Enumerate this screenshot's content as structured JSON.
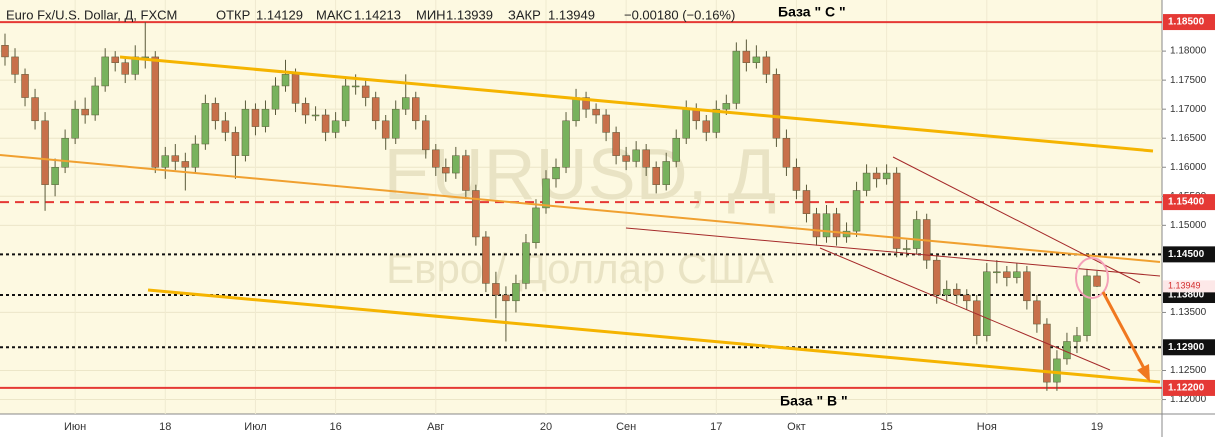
{
  "chart_data": {
    "type": "candlestick",
    "header": {
      "symbol": "Euro Fx/U.S. Dollar, Д, FXCM",
      "open_label": "ОТКР",
      "open": "1.14129",
      "high_label": "МАКС",
      "high": "1.14213",
      "low_label": "МИН",
      "low": "1.13939",
      "close_label": "ЗАКР",
      "close": "1.13949",
      "change": "−0.00180 (−0.16%)"
    },
    "watermark": {
      "ticker": "EURUSD, Д",
      "name": "Евро / Доллар США"
    },
    "annotations": [
      "База \" С \"",
      "База \" В \""
    ],
    "up_color": "#78b25d",
    "down_color": "#c8704a",
    "ylim": [
      1.1182,
      1.1888
    ],
    "yticks": [
      {
        "value": 1.12,
        "label": "1.12000"
      },
      {
        "value": 1.125,
        "label": "1.12500"
      },
      {
        "value": 1.135,
        "label": "1.13500"
      },
      {
        "value": 1.15,
        "label": "1.15000"
      },
      {
        "value": 1.155,
        "label": "1.15500"
      },
      {
        "value": 1.16,
        "label": "1.16000"
      },
      {
        "value": 1.165,
        "label": "1.16500"
      },
      {
        "value": 1.17,
        "label": "1.17000"
      },
      {
        "value": 1.175,
        "label": "1.17500"
      },
      {
        "value": 1.18,
        "label": "1.18000"
      }
    ],
    "levels": [
      {
        "value": 1.185,
        "label": "1.18500",
        "style": "solid",
        "color": "#e53935"
      },
      {
        "value": 1.154,
        "label": "1.15400",
        "style": "dashed",
        "color": "#e53935"
      },
      {
        "value": 1.145,
        "label": "1.14500",
        "style": "dotted",
        "color": "#111111"
      },
      {
        "value": 1.138,
        "label": "1.13800",
        "style": "dotted",
        "color": "#111111"
      },
      {
        "value": 1.129,
        "label": "1.12900",
        "style": "dotted",
        "color": "#111111"
      },
      {
        "value": 1.122,
        "label": "1.12200",
        "style": "solid",
        "color": "#e53935"
      }
    ],
    "last_price": {
      "value": 1.13949,
      "label": "1.13949"
    },
    "categories": [
      null,
      null,
      null,
      null,
      null,
      null,
      null,
      "Июн",
      null,
      null,
      null,
      null,
      null,
      null,
      null,
      null,
      "18",
      null,
      null,
      null,
      null,
      null,
      null,
      null,
      null,
      "Июл",
      null,
      null,
      null,
      null,
      null,
      null,
      null,
      "16",
      null,
      null,
      null,
      null,
      null,
      null,
      null,
      null,
      null,
      "Авг",
      null,
      null,
      null,
      null,
      null,
      null,
      null,
      null,
      null,
      null,
      "20",
      null,
      null,
      null,
      null,
      null,
      null,
      null,
      "Сен",
      null,
      null,
      null,
      null,
      null,
      null,
      null,
      null,
      "17",
      null,
      null,
      null,
      null,
      null,
      null,
      null,
      "Окт",
      null,
      null,
      null,
      null,
      null,
      null,
      null,
      null,
      "15",
      null,
      null,
      null,
      null,
      null,
      null,
      null,
      null,
      null,
      "Ноя",
      null,
      null,
      null,
      null,
      null,
      null,
      null,
      null,
      null,
      null,
      "19"
    ],
    "ohlc": [
      [
        1.181,
        1.183,
        1.1775,
        1.179
      ],
      [
        1.179,
        1.1805,
        1.1745,
        1.176
      ],
      [
        1.176,
        1.177,
        1.1705,
        1.172
      ],
      [
        1.172,
        1.1735,
        1.1665,
        1.168
      ],
      [
        1.168,
        1.1695,
        1.1525,
        1.157
      ],
      [
        1.157,
        1.1615,
        1.155,
        1.16
      ],
      [
        1.16,
        1.1665,
        1.159,
        1.165
      ],
      [
        1.165,
        1.1715,
        1.164,
        1.17
      ],
      [
        1.17,
        1.172,
        1.1675,
        1.169
      ],
      [
        1.169,
        1.1755,
        1.168,
        1.174
      ],
      [
        1.174,
        1.1805,
        1.173,
        1.179
      ],
      [
        1.179,
        1.18,
        1.1765,
        1.178
      ],
      [
        1.178,
        1.179,
        1.1745,
        1.176
      ],
      [
        1.176,
        1.181,
        1.175,
        1.179
      ],
      [
        1.179,
        1.185,
        1.177,
        1.179
      ],
      [
        1.179,
        1.18,
        1.159,
        1.16
      ],
      [
        1.16,
        1.1635,
        1.158,
        1.162
      ],
      [
        1.162,
        1.164,
        1.1595,
        1.161
      ],
      [
        1.161,
        1.1625,
        1.156,
        1.16
      ],
      [
        1.16,
        1.1655,
        1.159,
        1.164
      ],
      [
        1.164,
        1.1725,
        1.163,
        1.171
      ],
      [
        1.171,
        1.172,
        1.1665,
        1.168
      ],
      [
        1.168,
        1.1695,
        1.1645,
        1.166
      ],
      [
        1.166,
        1.167,
        1.158,
        1.162
      ],
      [
        1.162,
        1.1715,
        1.161,
        1.17
      ],
      [
        1.17,
        1.171,
        1.1655,
        1.167
      ],
      [
        1.167,
        1.1715,
        1.166,
        1.17
      ],
      [
        1.17,
        1.1755,
        1.169,
        1.174
      ],
      [
        1.174,
        1.1785,
        1.173,
        1.176
      ],
      [
        1.176,
        1.177,
        1.1695,
        1.171
      ],
      [
        1.171,
        1.172,
        1.1675,
        1.169
      ],
      [
        1.169,
        1.1705,
        1.168,
        1.169
      ],
      [
        1.169,
        1.17,
        1.1645,
        1.166
      ],
      [
        1.166,
        1.1695,
        1.165,
        1.168
      ],
      [
        1.168,
        1.1755,
        1.167,
        1.174
      ],
      [
        1.174,
        1.176,
        1.1725,
        1.174
      ],
      [
        1.174,
        1.175,
        1.1705,
        1.172
      ],
      [
        1.172,
        1.173,
        1.1665,
        1.168
      ],
      [
        1.168,
        1.169,
        1.163,
        1.165
      ],
      [
        1.165,
        1.1715,
        1.164,
        1.17
      ],
      [
        1.17,
        1.176,
        1.169,
        1.172
      ],
      [
        1.172,
        1.173,
        1.1665,
        1.168
      ],
      [
        1.168,
        1.169,
        1.1615,
        1.163
      ],
      [
        1.163,
        1.164,
        1.1585,
        1.16
      ],
      [
        1.16,
        1.1615,
        1.1575,
        1.159
      ],
      [
        1.159,
        1.1635,
        1.158,
        1.162
      ],
      [
        1.162,
        1.163,
        1.1545,
        1.156
      ],
      [
        1.156,
        1.157,
        1.1465,
        1.148
      ],
      [
        1.148,
        1.149,
        1.1385,
        1.14
      ],
      [
        1.14,
        1.142,
        1.134,
        1.138
      ],
      [
        1.138,
        1.1395,
        1.13,
        1.137
      ],
      [
        1.137,
        1.1415,
        1.135,
        1.14
      ],
      [
        1.14,
        1.1485,
        1.139,
        1.147
      ],
      [
        1.147,
        1.1545,
        1.146,
        1.153
      ],
      [
        1.153,
        1.1595,
        1.152,
        1.158
      ],
      [
        1.158,
        1.1615,
        1.1565,
        1.16
      ],
      [
        1.16,
        1.1695,
        1.159,
        1.168
      ],
      [
        1.168,
        1.1735,
        1.167,
        1.172
      ],
      [
        1.172,
        1.173,
        1.1685,
        1.17
      ],
      [
        1.17,
        1.171,
        1.1675,
        1.169
      ],
      [
        1.169,
        1.17,
        1.1645,
        1.166
      ],
      [
        1.166,
        1.167,
        1.1605,
        1.162
      ],
      [
        1.162,
        1.1635,
        1.1595,
        1.161
      ],
      [
        1.161,
        1.1645,
        1.16,
        1.163
      ],
      [
        1.163,
        1.164,
        1.1585,
        1.16
      ],
      [
        1.16,
        1.161,
        1.1555,
        1.157
      ],
      [
        1.157,
        1.1625,
        1.156,
        1.161
      ],
      [
        1.161,
        1.1665,
        1.16,
        1.165
      ],
      [
        1.165,
        1.1715,
        1.164,
        1.17
      ],
      [
        1.17,
        1.171,
        1.1665,
        1.168
      ],
      [
        1.168,
        1.169,
        1.1645,
        1.166
      ],
      [
        1.166,
        1.1715,
        1.165,
        1.17
      ],
      [
        1.17,
        1.1725,
        1.169,
        1.171
      ],
      [
        1.171,
        1.1815,
        1.17,
        1.18
      ],
      [
        1.18,
        1.182,
        1.1765,
        1.178
      ],
      [
        1.178,
        1.181,
        1.177,
        1.179
      ],
      [
        1.179,
        1.18,
        1.1745,
        1.176
      ],
      [
        1.176,
        1.177,
        1.1635,
        1.165
      ],
      [
        1.165,
        1.1665,
        1.1585,
        1.16
      ],
      [
        1.16,
        1.1615,
        1.1545,
        1.156
      ],
      [
        1.156,
        1.157,
        1.1505,
        1.152
      ],
      [
        1.152,
        1.153,
        1.1465,
        1.148
      ],
      [
        1.148,
        1.1535,
        1.147,
        1.152
      ],
      [
        1.152,
        1.153,
        1.1465,
        1.148
      ],
      [
        1.148,
        1.1505,
        1.147,
        1.149
      ],
      [
        1.149,
        1.1575,
        1.148,
        1.156
      ],
      [
        1.156,
        1.1605,
        1.155,
        1.159
      ],
      [
        1.159,
        1.16,
        1.1565,
        1.158
      ],
      [
        1.158,
        1.1605,
        1.157,
        1.159
      ],
      [
        1.159,
        1.16,
        1.1445,
        1.146
      ],
      [
        1.146,
        1.1475,
        1.1445,
        1.146
      ],
      [
        1.146,
        1.1525,
        1.145,
        1.151
      ],
      [
        1.151,
        1.152,
        1.1425,
        1.144
      ],
      [
        1.144,
        1.145,
        1.1365,
        1.138
      ],
      [
        1.138,
        1.1405,
        1.137,
        1.139
      ],
      [
        1.139,
        1.14,
        1.1365,
        1.138
      ],
      [
        1.138,
        1.139,
        1.1355,
        1.137
      ],
      [
        1.137,
        1.138,
        1.1295,
        1.131
      ],
      [
        1.131,
        1.1435,
        1.13,
        1.142
      ],
      [
        1.142,
        1.144,
        1.14,
        1.142
      ],
      [
        1.142,
        1.143,
        1.1395,
        1.141
      ],
      [
        1.141,
        1.1435,
        1.14,
        1.142
      ],
      [
        1.142,
        1.143,
        1.1355,
        1.137
      ],
      [
        1.137,
        1.138,
        1.1315,
        1.133
      ],
      [
        1.133,
        1.134,
        1.1215,
        1.123
      ],
      [
        1.123,
        1.1285,
        1.1215,
        1.127
      ],
      [
        1.127,
        1.1315,
        1.126,
        1.13
      ],
      [
        1.13,
        1.1325,
        1.128,
        1.131
      ],
      [
        1.131,
        1.1425,
        1.13,
        1.1413
      ],
      [
        1.14129,
        1.14213,
        1.13939,
        1.13949
      ]
    ]
  }
}
